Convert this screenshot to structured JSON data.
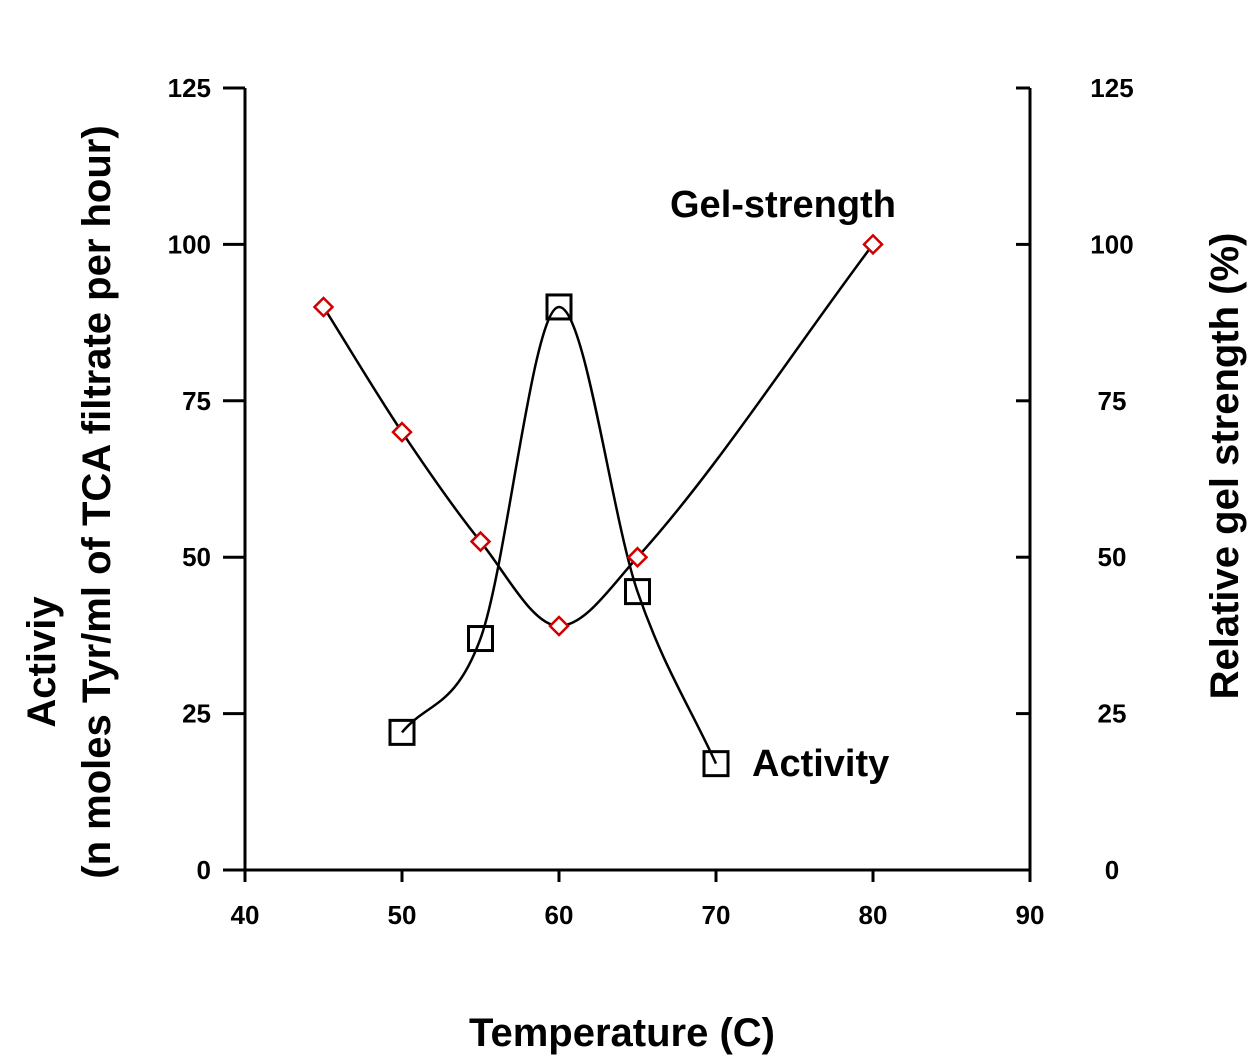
{
  "chart_data": {
    "type": "scatter",
    "x_axis": {
      "label": "Temperature (C)",
      "range": [
        40,
        90
      ],
      "ticks": [
        40,
        50,
        60,
        70,
        80,
        90
      ]
    },
    "y_axis_left": {
      "label_line1": "Activiy",
      "label_line2": "(n moles Tyr/ml of TCA filtrate per hour)",
      "range": [
        0,
        125
      ],
      "ticks": [
        0,
        25,
        50,
        75,
        100,
        125
      ]
    },
    "y_axis_right": {
      "label": "Relative gel strength (%)",
      "range": [
        0,
        125
      ],
      "ticks": [
        0,
        25,
        50,
        75,
        100,
        125
      ]
    },
    "series": [
      {
        "name": "Gel-strength",
        "axis": "right",
        "marker": "diamond",
        "marker_color": "#d00000",
        "x": [
          45,
          50,
          55,
          60,
          65,
          80
        ],
        "y": [
          90,
          70,
          52.5,
          39,
          50,
          100
        ]
      },
      {
        "name": "Activity",
        "axis": "left",
        "marker": "square",
        "marker_color": "#000000",
        "x": [
          50,
          55,
          60,
          65,
          70
        ],
        "y": [
          22,
          37,
          90,
          44.5,
          17
        ]
      }
    ],
    "grid": false,
    "legend": "inline labels"
  }
}
